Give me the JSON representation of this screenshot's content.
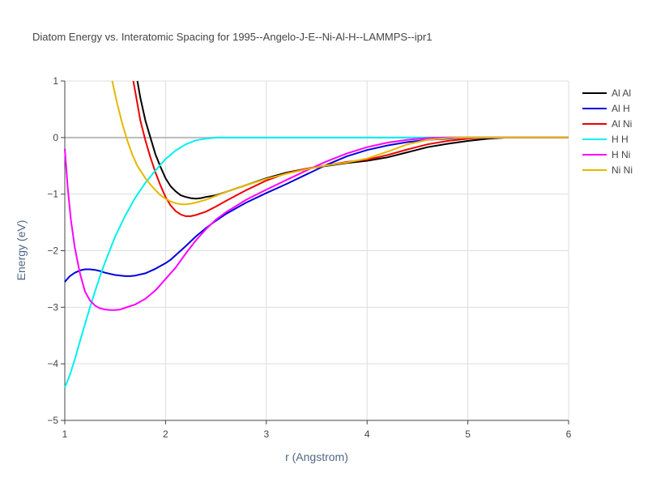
{
  "chart_data": {
    "type": "line",
    "title": "Diatom Energy vs. Interatomic Spacing for 1995--Angelo-J-E--Ni-Al-H--LAMMPS--ipr1",
    "xlabel": "r (Angstrom)",
    "ylabel": "Energy (eV)",
    "xlim": [
      1,
      6
    ],
    "ylim": [
      -5,
      1
    ],
    "xticks": [
      1,
      2,
      3,
      4,
      5,
      6
    ],
    "yticks": [
      1,
      0,
      -1,
      -2,
      -3,
      -4,
      -5
    ],
    "ytick_labels": [
      "1",
      "0",
      "−1",
      "−2",
      "−3",
      "−4",
      "−5"
    ],
    "grid": true,
    "legend_position": "top-right",
    "series": [
      {
        "name": "Al Al",
        "color": "#000000",
        "points": [
          [
            1.72,
            1.0
          ],
          [
            1.75,
            0.7
          ],
          [
            1.8,
            0.3
          ],
          [
            1.85,
            0.0
          ],
          [
            1.9,
            -0.3
          ],
          [
            1.95,
            -0.52
          ],
          [
            2.0,
            -0.72
          ],
          [
            2.05,
            -0.86
          ],
          [
            2.1,
            -0.95
          ],
          [
            2.15,
            -1.02
          ],
          [
            2.2,
            -1.05
          ],
          [
            2.25,
            -1.07
          ],
          [
            2.3,
            -1.08
          ],
          [
            2.35,
            -1.07
          ],
          [
            2.4,
            -1.05
          ],
          [
            2.5,
            -1.02
          ],
          [
            2.6,
            -0.96
          ],
          [
            2.8,
            -0.84
          ],
          [
            3.0,
            -0.72
          ],
          [
            3.2,
            -0.62
          ],
          [
            3.4,
            -0.55
          ],
          [
            3.6,
            -0.5
          ],
          [
            3.8,
            -0.45
          ],
          [
            4.0,
            -0.41
          ],
          [
            4.2,
            -0.35
          ],
          [
            4.4,
            -0.26
          ],
          [
            4.6,
            -0.17
          ],
          [
            4.8,
            -0.11
          ],
          [
            5.0,
            -0.06
          ],
          [
            5.2,
            -0.02
          ],
          [
            5.4,
            0.0
          ],
          [
            6.0,
            0.0
          ]
        ]
      },
      {
        "name": "Al H",
        "color": "#0000dd",
        "points": [
          [
            1.0,
            -2.55
          ],
          [
            1.05,
            -2.45
          ],
          [
            1.1,
            -2.39
          ],
          [
            1.15,
            -2.35
          ],
          [
            1.2,
            -2.33
          ],
          [
            1.25,
            -2.33
          ],
          [
            1.3,
            -2.34
          ],
          [
            1.35,
            -2.36
          ],
          [
            1.4,
            -2.39
          ],
          [
            1.5,
            -2.43
          ],
          [
            1.6,
            -2.45
          ],
          [
            1.65,
            -2.45
          ],
          [
            1.7,
            -2.44
          ],
          [
            1.8,
            -2.4
          ],
          [
            1.9,
            -2.32
          ],
          [
            2.0,
            -2.22
          ],
          [
            2.05,
            -2.16
          ],
          [
            2.1,
            -2.08
          ],
          [
            2.2,
            -1.92
          ],
          [
            2.3,
            -1.75
          ],
          [
            2.4,
            -1.6
          ],
          [
            2.5,
            -1.47
          ],
          [
            2.6,
            -1.35
          ],
          [
            2.8,
            -1.15
          ],
          [
            3.0,
            -0.98
          ],
          [
            3.2,
            -0.82
          ],
          [
            3.4,
            -0.65
          ],
          [
            3.6,
            -0.48
          ],
          [
            3.8,
            -0.33
          ],
          [
            4.0,
            -0.22
          ],
          [
            4.2,
            -0.14
          ],
          [
            4.4,
            -0.08
          ],
          [
            4.6,
            -0.04
          ],
          [
            4.8,
            -0.02
          ],
          [
            5.0,
            0.0
          ],
          [
            6.0,
            0.0
          ]
        ]
      },
      {
        "name": "Al Ni",
        "color": "#ee0000",
        "points": [
          [
            1.68,
            1.0
          ],
          [
            1.72,
            0.6
          ],
          [
            1.75,
            0.3
          ],
          [
            1.8,
            -0.05
          ],
          [
            1.85,
            -0.35
          ],
          [
            1.9,
            -0.62
          ],
          [
            1.95,
            -0.85
          ],
          [
            2.0,
            -1.05
          ],
          [
            2.05,
            -1.2
          ],
          [
            2.1,
            -1.3
          ],
          [
            2.15,
            -1.36
          ],
          [
            2.2,
            -1.39
          ],
          [
            2.25,
            -1.39
          ],
          [
            2.3,
            -1.37
          ],
          [
            2.4,
            -1.31
          ],
          [
            2.5,
            -1.22
          ],
          [
            2.6,
            -1.12
          ],
          [
            2.8,
            -0.93
          ],
          [
            3.0,
            -0.76
          ],
          [
            3.2,
            -0.63
          ],
          [
            3.4,
            -0.55
          ],
          [
            3.6,
            -0.49
          ],
          [
            3.8,
            -0.43
          ],
          [
            4.0,
            -0.39
          ],
          [
            4.2,
            -0.31
          ],
          [
            4.4,
            -0.21
          ],
          [
            4.6,
            -0.12
          ],
          [
            4.8,
            -0.06
          ],
          [
            5.0,
            -0.02
          ],
          [
            5.2,
            0.0
          ],
          [
            6.0,
            0.0
          ]
        ]
      },
      {
        "name": "H H",
        "color": "#00f0f0",
        "points": [
          [
            1.0,
            -4.42
          ],
          [
            1.05,
            -4.2
          ],
          [
            1.1,
            -3.92
          ],
          [
            1.15,
            -3.6
          ],
          [
            1.2,
            -3.3
          ],
          [
            1.25,
            -3.0
          ],
          [
            1.3,
            -2.72
          ],
          [
            1.35,
            -2.45
          ],
          [
            1.4,
            -2.2
          ],
          [
            1.5,
            -1.75
          ],
          [
            1.6,
            -1.38
          ],
          [
            1.7,
            -1.06
          ],
          [
            1.8,
            -0.8
          ],
          [
            1.9,
            -0.58
          ],
          [
            2.0,
            -0.38
          ],
          [
            2.1,
            -0.23
          ],
          [
            2.2,
            -0.12
          ],
          [
            2.3,
            -0.05
          ],
          [
            2.4,
            -0.02
          ],
          [
            2.5,
            0.0
          ],
          [
            2.6,
            0.0
          ],
          [
            6.0,
            0.0
          ]
        ]
      },
      {
        "name": "H Ni",
        "color": "#ff00ff",
        "points": [
          [
            1.0,
            -0.2
          ],
          [
            1.03,
            -0.9
          ],
          [
            1.06,
            -1.45
          ],
          [
            1.1,
            -1.95
          ],
          [
            1.15,
            -2.4
          ],
          [
            1.2,
            -2.72
          ],
          [
            1.25,
            -2.88
          ],
          [
            1.3,
            -2.97
          ],
          [
            1.35,
            -3.02
          ],
          [
            1.4,
            -3.04
          ],
          [
            1.45,
            -3.05
          ],
          [
            1.5,
            -3.05
          ],
          [
            1.55,
            -3.04
          ],
          [
            1.6,
            -3.01
          ],
          [
            1.7,
            -2.95
          ],
          [
            1.8,
            -2.85
          ],
          [
            1.9,
            -2.7
          ],
          [
            2.0,
            -2.5
          ],
          [
            2.1,
            -2.3
          ],
          [
            2.2,
            -2.05
          ],
          [
            2.3,
            -1.82
          ],
          [
            2.4,
            -1.62
          ],
          [
            2.5,
            -1.45
          ],
          [
            2.6,
            -1.32
          ],
          [
            2.8,
            -1.1
          ],
          [
            3.0,
            -0.92
          ],
          [
            3.2,
            -0.75
          ],
          [
            3.4,
            -0.58
          ],
          [
            3.6,
            -0.42
          ],
          [
            3.8,
            -0.28
          ],
          [
            4.0,
            -0.17
          ],
          [
            4.2,
            -0.09
          ],
          [
            4.4,
            -0.04
          ],
          [
            4.6,
            -0.01
          ],
          [
            4.8,
            0.0
          ],
          [
            6.0,
            0.0
          ]
        ]
      },
      {
        "name": "Ni Ni",
        "color": "#e6b800",
        "points": [
          [
            1.47,
            1.0
          ],
          [
            1.52,
            0.6
          ],
          [
            1.57,
            0.25
          ],
          [
            1.62,
            -0.05
          ],
          [
            1.67,
            -0.3
          ],
          [
            1.72,
            -0.5
          ],
          [
            1.8,
            -0.72
          ],
          [
            1.85,
            -0.83
          ],
          [
            1.9,
            -0.93
          ],
          [
            1.95,
            -1.02
          ],
          [
            2.0,
            -1.08
          ],
          [
            2.05,
            -1.13
          ],
          [
            2.1,
            -1.16
          ],
          [
            2.15,
            -1.18
          ],
          [
            2.2,
            -1.18
          ],
          [
            2.25,
            -1.17
          ],
          [
            2.3,
            -1.15
          ],
          [
            2.4,
            -1.1
          ],
          [
            2.5,
            -1.03
          ],
          [
            2.6,
            -0.96
          ],
          [
            2.8,
            -0.84
          ],
          [
            3.0,
            -0.73
          ],
          [
            3.2,
            -0.64
          ],
          [
            3.4,
            -0.56
          ],
          [
            3.6,
            -0.49
          ],
          [
            3.8,
            -0.44
          ],
          [
            4.0,
            -0.37
          ],
          [
            4.2,
            -0.25
          ],
          [
            4.4,
            -0.12
          ],
          [
            4.6,
            -0.04
          ],
          [
            4.8,
            -0.01
          ],
          [
            5.0,
            0.0
          ],
          [
            6.0,
            0.0
          ]
        ]
      }
    ]
  }
}
